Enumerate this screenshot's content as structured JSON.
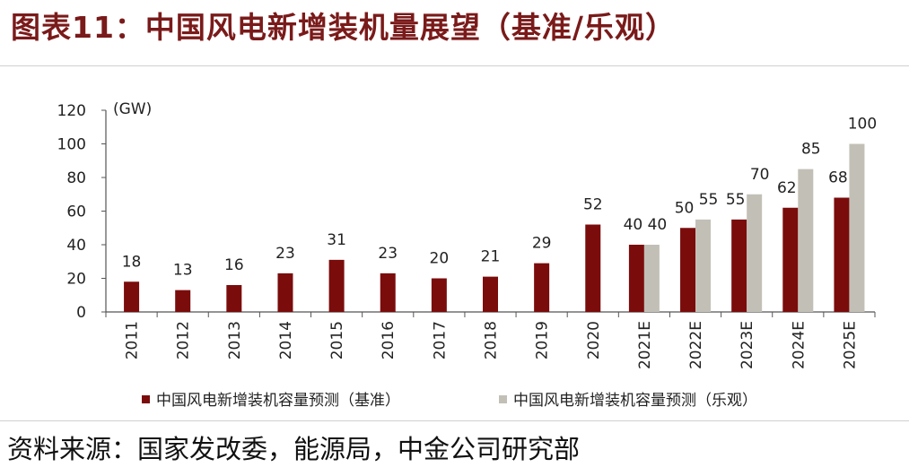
{
  "figure_title": "图表11：中国风电新增装机量展望（基准/乐观）",
  "source": "资料来源：国家发改委，能源局，中金公司研究部",
  "chart_data": {
    "type": "bar",
    "unit_label": "(GW)",
    "ylim": [
      0,
      120
    ],
    "yticks": [
      0,
      20,
      40,
      60,
      80,
      100,
      120
    ],
    "categories": [
      "2011",
      "2012",
      "2013",
      "2014",
      "2015",
      "2016",
      "2017",
      "2018",
      "2019",
      "2020",
      "2021E",
      "2022E",
      "2023E",
      "2024E",
      "2025E"
    ],
    "series": [
      {
        "name": "中国风电新增装机容量预测（基准）",
        "color": "#7b0c0c",
        "values": [
          18,
          13,
          16,
          23,
          31,
          23,
          20,
          21,
          29,
          52,
          40,
          50,
          55,
          62,
          68
        ]
      },
      {
        "name": "中国风电新增装机容量预测（乐观）",
        "color": "#c2c0b6",
        "values": [
          null,
          null,
          null,
          null,
          null,
          null,
          null,
          null,
          null,
          null,
          40,
          55,
          70,
          85,
          100
        ]
      }
    ],
    "legend_position": "bottom",
    "grid": false
  }
}
